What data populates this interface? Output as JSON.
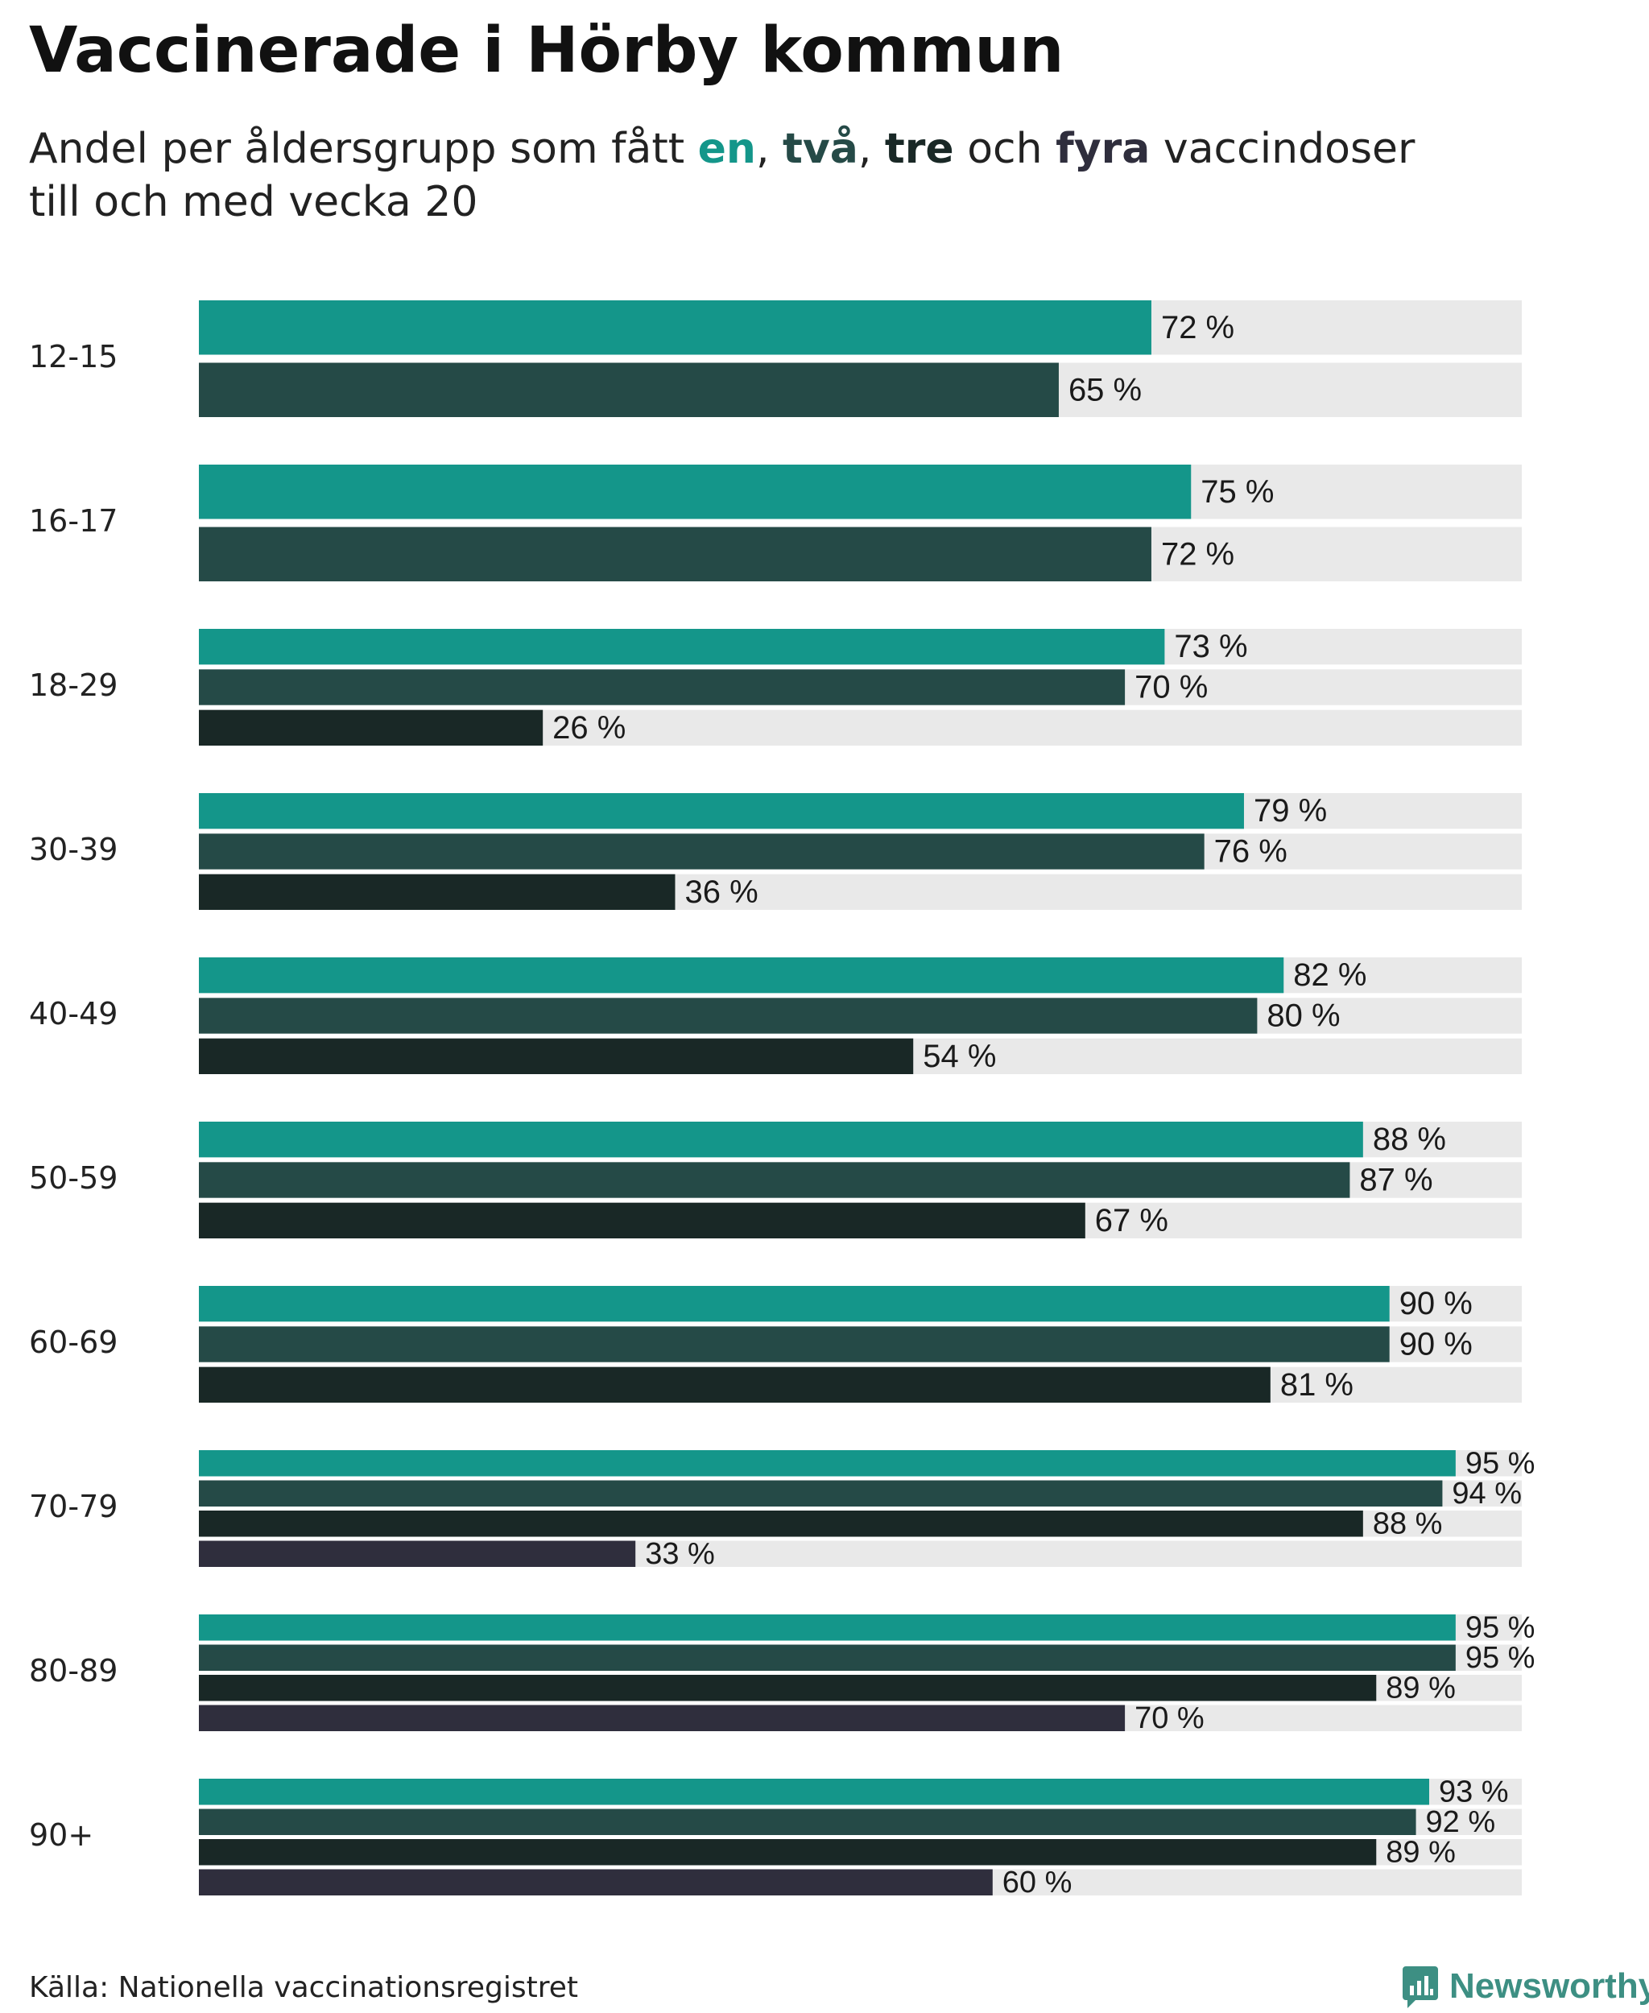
{
  "title": "Vaccinerade i Hörby kommun",
  "subtitle": {
    "prefix": "Andel per åldersgrupp som fått ",
    "dose1": "en",
    "sep1": ", ",
    "dose2": "två",
    "sep2": ", ",
    "dose3": "tre",
    "mid": " och ",
    "dose4": "fyra",
    "suffix": " vaccindoser",
    "line2": "till och med vecka 20"
  },
  "colors": {
    "dose1": "#14968a",
    "dose2": "#254a47",
    "dose3": "#192826",
    "dose4": "#2f2e3d",
    "track": "#e9e9e9"
  },
  "footer": {
    "source": "Källa: Nationella vaccinationsregistret",
    "brand": "Newsworthy",
    "brand_icon": "bar-chart-speech-bubble-icon"
  },
  "chart_data": {
    "type": "bar",
    "orientation": "horizontal",
    "xlim": [
      0,
      100
    ],
    "value_suffix": " %",
    "series_names": [
      "en",
      "två",
      "tre",
      "fyra"
    ],
    "categories": [
      "12-15",
      "16-17",
      "18-29",
      "30-39",
      "40-49",
      "50-59",
      "60-69",
      "70-79",
      "80-89",
      "90+"
    ],
    "groups": [
      {
        "label": "12-15",
        "values": [
          72,
          65
        ]
      },
      {
        "label": "16-17",
        "values": [
          75,
          72
        ]
      },
      {
        "label": "18-29",
        "values": [
          73,
          70,
          26
        ]
      },
      {
        "label": "30-39",
        "values": [
          79,
          76,
          36
        ]
      },
      {
        "label": "40-49",
        "values": [
          82,
          80,
          54
        ]
      },
      {
        "label": "50-59",
        "values": [
          88,
          87,
          67
        ]
      },
      {
        "label": "60-69",
        "values": [
          90,
          90,
          81
        ]
      },
      {
        "label": "70-79",
        "values": [
          95,
          94,
          88,
          33
        ]
      },
      {
        "label": "80-89",
        "values": [
          95,
          95,
          89,
          70
        ]
      },
      {
        "label": "90+",
        "values": [
          93,
          92,
          89,
          60
        ]
      }
    ]
  }
}
